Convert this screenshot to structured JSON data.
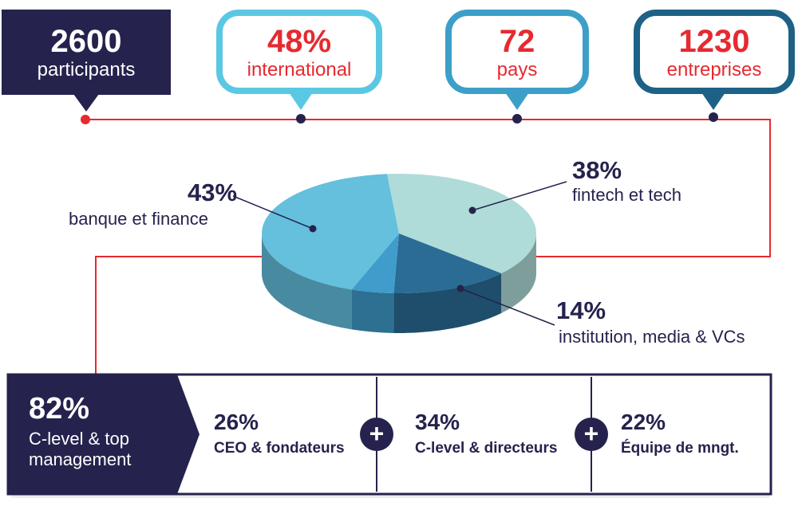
{
  "stats": [
    {
      "value": "2600",
      "label": "participants"
    },
    {
      "value": "48%",
      "label": "international"
    },
    {
      "value": "72",
      "label": "pays"
    },
    {
      "value": "1230",
      "label": "entreprises"
    }
  ],
  "colors": {
    "navy": "#25234d",
    "red": "#e52a30",
    "sky": "#5bc8e3",
    "blue_mid": "#3d9fc8",
    "blue_dark": "#1e6187",
    "mint": "#afdcd8"
  },
  "chart_data": {
    "type": "pie",
    "slices": [
      {
        "pct_label": "43%",
        "label": "banque et finance",
        "value": 43,
        "color": "#64c0dd"
      },
      {
        "pct_label": "38%",
        "label": "fintech et tech",
        "value": 38,
        "color": "#afdcd8"
      },
      {
        "pct_label": "14%",
        "label": "institution, media & VCs",
        "value": 14,
        "color": "#2a6c94"
      },
      {
        "value": 5,
        "color": "#3f9ccb"
      }
    ]
  },
  "management": {
    "total_pct": "82%",
    "total_line1": "C-level & top",
    "total_line2": "management",
    "items": [
      {
        "pct": "26%",
        "label": "CEO & fondateurs"
      },
      {
        "pct": "34%",
        "label": "C-level & directeurs"
      },
      {
        "pct": "22%",
        "label": "Équipe de mngt."
      }
    ],
    "plus_symbol": "+"
  }
}
